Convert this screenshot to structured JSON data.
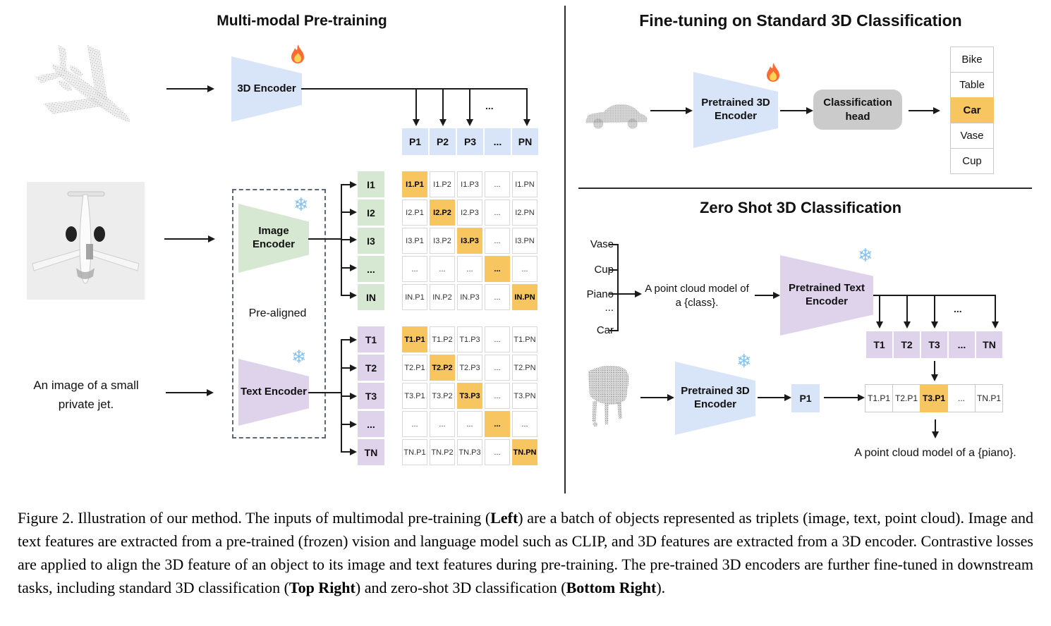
{
  "pretrain": {
    "title": "Multi-modal Pre-training",
    "encoder_3d_label": "3D Encoder",
    "image_encoder_label": "Image Encoder",
    "text_encoder_label": "Text Encoder",
    "pre_aligned": "Pre-aligned",
    "image_text": "An image of a small private jet.",
    "ellipsis": "...",
    "p_row": [
      "P1",
      "P2",
      "P3",
      "...",
      "PN"
    ],
    "i_labels": [
      "I1",
      "I2",
      "I3",
      "...",
      "IN"
    ],
    "t_labels": [
      "T1",
      "T2",
      "T3",
      "...",
      "TN"
    ],
    "i_matrix": [
      [
        "I1.P1",
        "I1.P2",
        "I1.P3",
        "...",
        "I1.PN"
      ],
      [
        "I2.P1",
        "I2.P2",
        "I2.P3",
        "...",
        "I2.PN"
      ],
      [
        "I3.P1",
        "I3.P2",
        "I3.P3",
        "...",
        "I3.PN"
      ],
      [
        "...",
        "...",
        "...",
        "...",
        "..."
      ],
      [
        "IN.P1",
        "IN.P2",
        "IN.P3",
        "...",
        "IN.PN"
      ]
    ],
    "t_matrix": [
      [
        "T1.P1",
        "T1.P2",
        "T1.P3",
        "...",
        "T1.PN"
      ],
      [
        "T2.P1",
        "T2.P2",
        "T2.P3",
        "...",
        "T2.PN"
      ],
      [
        "T3.P1",
        "T3.P2",
        "T3.P3",
        "...",
        "T3.PN"
      ],
      [
        "...",
        "...",
        "...",
        "...",
        "..."
      ],
      [
        "TN.P1",
        "TN.P2",
        "TN.P3",
        "...",
        "TN.PN"
      ]
    ]
  },
  "finetune": {
    "title": "Fine-tuning on Standard 3D Classification",
    "encoder_label": "Pretrained 3D Encoder",
    "head_label": "Classification head",
    "classes": [
      "Bike",
      "Table",
      "Car",
      "Vase",
      "Cup"
    ],
    "highlighted_class": "Car"
  },
  "zeroshot": {
    "title": "Zero Shot 3D Classification",
    "class_list": [
      "Vase",
      "Cup",
      "Piano",
      "...",
      "Car"
    ],
    "prompt": "A point cloud model of a {class}.",
    "text_encoder_label": "Pretrained Text Encoder",
    "encoder_label": "Pretrained 3D Encoder",
    "p1": "P1",
    "ellipsis": "...",
    "t_row": [
      "T1",
      "T2",
      "T3",
      "...",
      "TN"
    ],
    "result_row": [
      "T1.P1",
      "T2.P1",
      "T3.P1",
      "...",
      "TN.P1"
    ],
    "highlighted_result": "T3.P1",
    "result_caption": "A point cloud model of a {piano}."
  },
  "caption": {
    "segments": [
      {
        "text": "Figure 2. Illustration of our method. The inputs of multimodal pre-training (",
        "bold": false
      },
      {
        "text": "Left",
        "bold": true
      },
      {
        "text": ") are a batch of objects represented as triplets (image, text, point cloud). Image and text features are extracted from a pre-trained (frozen) vision and language model such as CLIP, and 3D features are extracted from a 3D encoder. Contrastive losses are applied to align the 3D feature of an object to its image and text features during pre-training. The pre-trained 3D encoders are further fine-tuned in downstream tasks, including standard 3D classification (",
        "bold": false
      },
      {
        "text": "Top Right",
        "bold": true
      },
      {
        "text": ") and zero-shot 3D classification (",
        "bold": false
      },
      {
        "text": "Bottom Right",
        "bold": true
      },
      {
        "text": ").",
        "bold": false
      }
    ]
  },
  "icons": {
    "snowflake": "❄"
  },
  "colors": {
    "blue": "#d8e4f8",
    "green": "#d6e8d1",
    "purple": "#ded3ea",
    "orange": "#f8c661",
    "headgray": "#cbcbcb"
  }
}
